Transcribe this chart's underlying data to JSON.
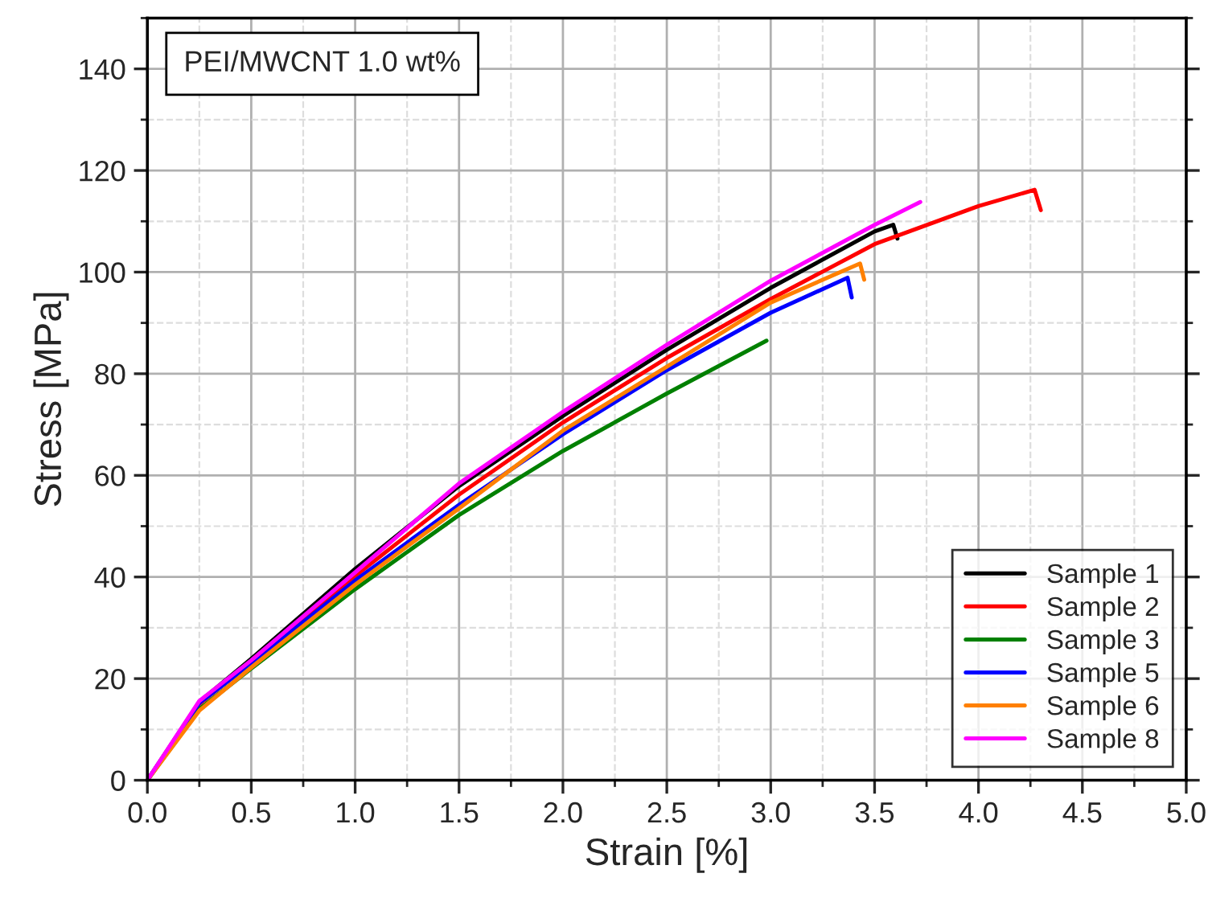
{
  "chart_data": {
    "type": "line",
    "xlabel": "Strain [%]",
    "ylabel": "Stress [MPa]",
    "annotations": [
      "PEI/MWCNT 1.0 wt%"
    ],
    "xlim": [
      0,
      5
    ],
    "ylim": [
      0,
      150
    ],
    "xticks": [
      {
        "value": 0,
        "label": "0.0"
      },
      {
        "value": 0.5,
        "label": "0.5"
      },
      {
        "value": 1,
        "label": "1.0"
      },
      {
        "value": 1.5,
        "label": "1.5"
      },
      {
        "value": 2,
        "label": "2.0"
      },
      {
        "value": 2.5,
        "label": "2.5"
      },
      {
        "value": 3,
        "label": "3.0"
      },
      {
        "value": 3.5,
        "label": "3.5"
      },
      {
        "value": 4,
        "label": "4.0"
      },
      {
        "value": 4.5,
        "label": "4.5"
      },
      {
        "value": 5,
        "label": "5.0"
      }
    ],
    "yticks": [
      0,
      20,
      40,
      60,
      80,
      100,
      120,
      140
    ],
    "grid": true,
    "legend": "bottom right",
    "marker": "none",
    "line_style": "solid",
    "series": [
      {
        "name": "Sample 1",
        "color": "#000000",
        "x": [
          0,
          0.25,
          0.5,
          1.0,
          1.5,
          2.0,
          2.5,
          3.0,
          3.5,
          3.59,
          3.61
        ],
        "values": [
          0,
          15.4,
          23.9,
          41.6,
          57.9,
          71.7,
          84.7,
          96.9,
          108.0,
          109.3,
          106.6
        ]
      },
      {
        "name": "Sample 2",
        "color": "#ff0000",
        "x": [
          0,
          0.25,
          0.5,
          1.0,
          1.5,
          2.0,
          2.5,
          3.0,
          3.5,
          4.0,
          4.27,
          4.3
        ],
        "values": [
          0,
          15.0,
          23.2,
          40.2,
          56.2,
          70.4,
          83.1,
          94.7,
          105.5,
          113.0,
          116.2,
          112.2
        ]
      },
      {
        "name": "Sample 3",
        "color": "#008000",
        "x": [
          0,
          0.25,
          0.5,
          1.0,
          1.5,
          2.0,
          2.5,
          2.98
        ],
        "values": [
          0,
          14.0,
          22.0,
          37.6,
          52.2,
          64.8,
          76.1,
          86.5
        ]
      },
      {
        "name": "Sample 5",
        "color": "#0000ff",
        "x": [
          0,
          0.25,
          0.5,
          1.0,
          1.5,
          2.0,
          2.5,
          3.0,
          3.37,
          3.39
        ],
        "values": [
          0,
          15.2,
          23.0,
          39.3,
          54.2,
          68.1,
          80.7,
          92.0,
          98.9,
          95.0
        ]
      },
      {
        "name": "Sample 6",
        "color": "#ff8000",
        "x": [
          0,
          0.25,
          0.5,
          1.0,
          1.5,
          2.0,
          2.5,
          3.0,
          3.43,
          3.45
        ],
        "values": [
          0,
          13.7,
          22.2,
          38.5,
          53.5,
          68.8,
          81.4,
          94.0,
          101.7,
          98.5
        ]
      },
      {
        "name": "Sample 8",
        "color": "#ff00ff",
        "x": [
          0,
          0.25,
          0.5,
          1.0,
          1.5,
          2.0,
          2.5,
          3.0,
          3.5,
          3.72
        ],
        "values": [
          0,
          15.6,
          23.6,
          40.9,
          58.4,
          72.5,
          85.7,
          98.3,
          109.3,
          113.8
        ]
      }
    ]
  }
}
